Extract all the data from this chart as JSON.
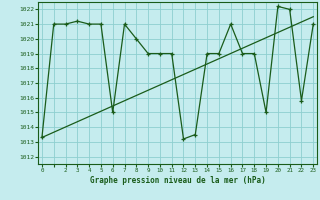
{
  "title": "Graphe pression niveau de la mer (hPa)",
  "bg_color": "#c5ecee",
  "grid_color": "#8ecfcf",
  "line_color": "#1a5c1a",
  "ylim": [
    1011.5,
    1022.5
  ],
  "yticks": [
    1012,
    1013,
    1014,
    1015,
    1016,
    1017,
    1018,
    1019,
    1020,
    1021,
    1022
  ],
  "xlim": [
    -0.3,
    23.3
  ],
  "data_x": [
    0,
    1,
    2,
    3,
    4,
    5,
    6,
    7,
    8,
    9,
    10,
    11,
    12,
    13,
    14,
    15,
    16,
    17,
    18,
    19,
    20,
    21,
    22,
    23
  ],
  "data_y": [
    1013.3,
    1021.0,
    1021.0,
    1021.2,
    1021.0,
    1021.0,
    1015.0,
    1021.0,
    1020.0,
    1019.0,
    1019.0,
    1019.0,
    1013.2,
    1013.5,
    1019.0,
    1019.0,
    1021.0,
    1019.0,
    1019.0,
    1015.0,
    1022.2,
    1022.0,
    1015.8,
    1021.0
  ],
  "trend_x": [
    0,
    23
  ],
  "trend_y": [
    1013.3,
    1021.5
  ]
}
